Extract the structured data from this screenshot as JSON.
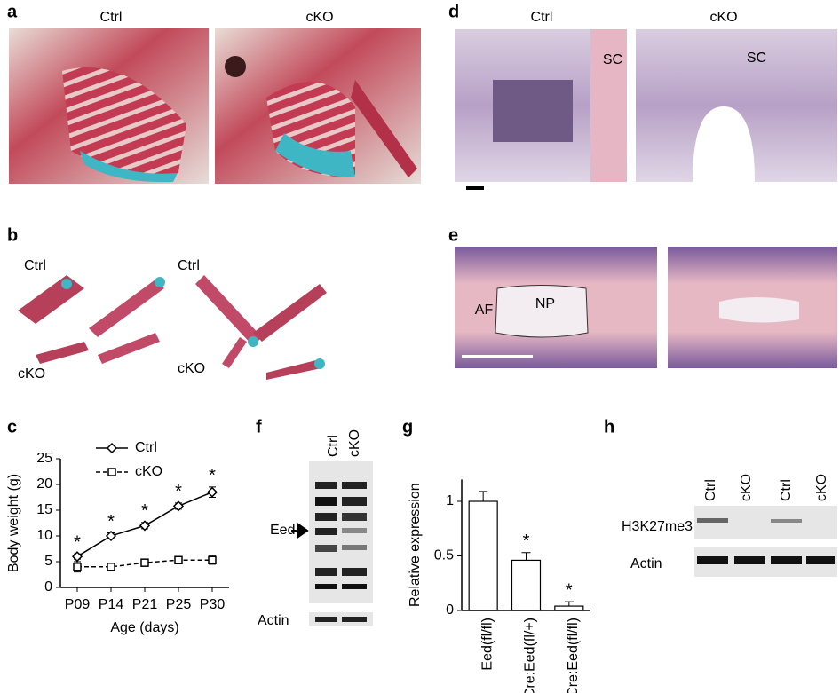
{
  "panel_labels": [
    "a",
    "b",
    "c",
    "d",
    "e",
    "f",
    "g",
    "h"
  ],
  "a": {
    "headers": [
      "Ctrl",
      "cKO"
    ]
  },
  "b": {
    "labels": [
      "Ctrl",
      "cKO",
      "Ctrl",
      "cKO"
    ]
  },
  "d": {
    "headers": [
      "Ctrl",
      "cKO"
    ],
    "annotations": [
      "SC",
      "SC"
    ]
  },
  "e": {
    "annotations": [
      "AF",
      "NP"
    ]
  },
  "f": {
    "lanes": [
      "Ctrl",
      "cKO"
    ],
    "bands": [
      "Eed",
      "Actin"
    ]
  },
  "h": {
    "lanes": [
      "Ctrl",
      "cKO",
      "Ctrl",
      "cKO"
    ],
    "rows": [
      "H3K27me3",
      "Actin"
    ]
  },
  "chart_data": [
    {
      "type": "line",
      "xlabel": "Age (days)",
      "ylabel": "Body weight (g)",
      "categories": [
        "P09",
        "P14",
        "P21",
        "P25",
        "P30"
      ],
      "series": [
        {
          "name": "Ctrl",
          "color": "#000000",
          "marker": "diamond",
          "linestyle": "solid",
          "values": [
            6,
            10,
            12,
            15.8,
            18.5
          ],
          "errors": [
            0.5,
            0.6,
            0.6,
            0.6,
            1.0
          ],
          "significance": [
            "*",
            "*",
            "*",
            "*",
            "*"
          ]
        },
        {
          "name": "cKO",
          "color": "#000000",
          "marker": "square",
          "linestyle": "dashed",
          "values": [
            4,
            4,
            4.8,
            5.3,
            5.3
          ],
          "errors": [
            1.0,
            0.7,
            0.6,
            0.7,
            0.8
          ]
        }
      ],
      "ylim": [
        0,
        25
      ],
      "yticks": [
        0,
        5,
        10,
        15,
        20,
        25
      ],
      "legend": "upper left"
    },
    {
      "type": "bar",
      "ylabel": "Relative expression",
      "categories": [
        "Eed(fl/fl)",
        "Cre:Eed(fl/+)",
        "Cre:Eed(fl/fl)"
      ],
      "values": [
        1,
        0.46,
        0.04
      ],
      "errors": [
        0.09,
        0.07,
        0.04
      ],
      "significance": [
        null,
        "*",
        "*"
      ],
      "color": "#ffffff",
      "ylim": [
        0,
        1.2
      ],
      "yticks": [
        0,
        0.5,
        1
      ]
    }
  ]
}
